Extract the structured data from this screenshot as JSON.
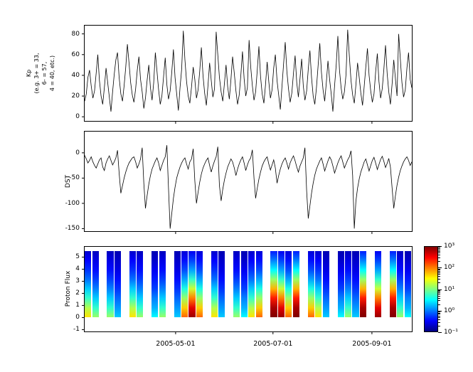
{
  "figure": {
    "background": "#ffffff",
    "line_color": "#000000",
    "x_axis": {
      "domain_days": [
        0,
        205
      ],
      "tick_days": [
        57,
        118,
        180
      ],
      "tick_labels": [
        "2005-05-01",
        "2005-07-01",
        "2005-09-01"
      ]
    }
  },
  "chart_data": [
    {
      "type": "line",
      "name": "kp-index",
      "ylabel_lines": [
        "Kp",
        "(e.g. 3+ = 33,",
        "6- = 57,",
        "4 = 40, etc.)"
      ],
      "ylim": [
        -4,
        88
      ],
      "yticks": [
        0,
        20,
        40,
        60,
        80
      ],
      "line_color": "#000000",
      "values": [
        15,
        22,
        38,
        45,
        30,
        18,
        25,
        42,
        60,
        35,
        20,
        12,
        28,
        47,
        33,
        19,
        5,
        24,
        41,
        55,
        62,
        38,
        22,
        15,
        30,
        48,
        70,
        52,
        33,
        21,
        14,
        27,
        45,
        58,
        36,
        24,
        8,
        18,
        35,
        50,
        28,
        16,
        33,
        62,
        44,
        26,
        12,
        20,
        39,
        57,
        31,
        17,
        25,
        43,
        65,
        38,
        22,
        6,
        28,
        46,
        83,
        55,
        34,
        20,
        13,
        29,
        48,
        36,
        18,
        26,
        44,
        67,
        40,
        23,
        11,
        30,
        52,
        35,
        19,
        27,
        82,
        60,
        38,
        24,
        15,
        32,
        50,
        29,
        17,
        36,
        58,
        42,
        25,
        12,
        21,
        40,
        63,
        37,
        20,
        28,
        74,
        48,
        30,
        16,
        24,
        45,
        68,
        39,
        22,
        13,
        31,
        53,
        34,
        18,
        26,
        47,
        60,
        35,
        21,
        7,
        29,
        51,
        72,
        44,
        27,
        14,
        23,
        42,
        59,
        33,
        19,
        37,
        56,
        30,
        16,
        25,
        46,
        64,
        38,
        20,
        12,
        28,
        49,
        71,
        43,
        26,
        15,
        33,
        54,
        36,
        22,
        5,
        30,
        50,
        78,
        45,
        28,
        17,
        24,
        41,
        84,
        58,
        35,
        21,
        13,
        31,
        52,
        38,
        23,
        11,
        29,
        48,
        66,
        40,
        25,
        14,
        22,
        43,
        61,
        34,
        18,
        27,
        46,
        69,
        42,
        24,
        12,
        32,
        55,
        37,
        20,
        80,
        56,
        33,
        19,
        26,
        47,
        62,
        36,
        28
      ]
    },
    {
      "type": "line",
      "name": "dst",
      "ylabel_lines": [
        "DST"
      ],
      "ylim": [
        -155,
        42
      ],
      "yticks": [
        0,
        -50,
        -100,
        -150
      ],
      "line_color": "#000000",
      "values": [
        -5,
        -12,
        -20,
        -15,
        -8,
        -18,
        -25,
        -30,
        -22,
        -14,
        -10,
        -28,
        -35,
        -20,
        -12,
        -6,
        -15,
        -24,
        -18,
        -10,
        5,
        -40,
        -80,
        -65,
        -50,
        -38,
        -28,
        -20,
        -15,
        -10,
        -8,
        -18,
        -30,
        -22,
        -12,
        10,
        -60,
        -110,
        -85,
        -62,
        -45,
        -32,
        -24,
        -16,
        -10,
        -20,
        -35,
        -25,
        -15,
        -8,
        15,
        -70,
        -150,
        -120,
        -90,
        -68,
        -50,
        -38,
        -28,
        -20,
        -14,
        -10,
        -22,
        -32,
        -18,
        -12,
        8,
        -55,
        -100,
        -78,
        -58,
        -42,
        -30,
        -22,
        -15,
        -10,
        -25,
        -38,
        -26,
        -16,
        -8,
        12,
        -65,
        -95,
        -72,
        -54,
        -40,
        -28,
        -20,
        -12,
        -18,
        -30,
        -45,
        -32,
        -22,
        -14,
        -8,
        -20,
        -35,
        -24,
        -15,
        -10,
        6,
        -50,
        -90,
        -70,
        -52,
        -38,
        -26,
        -18,
        -12,
        -8,
        -22,
        -34,
        -24,
        -14,
        -30,
        -60,
        -45,
        -32,
        -22,
        -15,
        -10,
        -20,
        -32,
        -20,
        -12,
        -6,
        -16,
        -28,
        -38,
        -26,
        -18,
        -10,
        10,
        -75,
        -130,
        -105,
        -80,
        -60,
        -44,
        -32,
        -24,
        -16,
        -10,
        -22,
        -36,
        -26,
        -16,
        -8,
        -14,
        -26,
        -40,
        -30,
        -20,
        -12,
        -6,
        -18,
        -30,
        -22,
        -14,
        -8,
        4,
        -45,
        -150,
        -95,
        -70,
        -52,
        -38,
        -28,
        -18,
        -12,
        -24,
        -36,
        -25,
        -15,
        -9,
        -20,
        -33,
        -23,
        -13,
        -7,
        -17,
        -29,
        -21,
        -11,
        -28,
        -70,
        -110,
        -85,
        -64,
        -48,
        -35,
        -26,
        -18,
        -12,
        -8,
        -15,
        -25,
        -18
      ]
    },
    {
      "type": "heatmap",
      "name": "proton-flux",
      "ylabel_lines": [
        "Proton Flux"
      ],
      "ylim": [
        -1.15,
        5.85
      ],
      "yticks": [
        -1,
        0,
        1,
        2,
        3,
        4,
        5
      ],
      "energy_range": [
        0,
        5.5
      ],
      "value_range": [
        -1,
        3
      ],
      "colormap": "jet",
      "colorbar": {
        "tick_labels": [
          "10³",
          "10²",
          "10¹",
          "10⁰",
          "10⁻¹"
        ]
      },
      "columns": [
        [
          1.6,
          1.2,
          0.7,
          0.3,
          -0.05,
          -0.3,
          -0.5,
          -0.7
        ],
        [
          1.1,
          0.7,
          0.3,
          0.0,
          -0.25,
          -0.45,
          -0.6,
          -0.75
        ],
        null,
        [
          1.1,
          0.7,
          0.3,
          0.0,
          -0.25,
          -0.45,
          -0.6,
          -0.75
        ],
        [
          0.3,
          0.1,
          -0.1,
          -0.3,
          -0.45,
          -0.6,
          -0.7,
          -0.8
        ],
        null,
        [
          1.6,
          1.2,
          0.7,
          0.3,
          -0.05,
          -0.3,
          -0.5,
          -0.7
        ],
        [
          1.1,
          0.7,
          0.3,
          0.0,
          -0.25,
          -0.45,
          -0.6,
          -0.75
        ],
        null,
        [
          0.5,
          0.2,
          0.0,
          -0.25,
          -0.4,
          -0.55,
          -0.7,
          -0.8
        ],
        [
          1.1,
          0.7,
          0.3,
          0.0,
          -0.25,
          -0.45,
          -0.6,
          -0.75
        ],
        null,
        [
          0.3,
          0.1,
          -0.1,
          -0.3,
          -0.45,
          -0.6,
          -0.7,
          -0.8
        ],
        [
          2.1,
          1.7,
          1.1,
          0.6,
          0.15,
          -0.2,
          -0.45,
          -0.65
        ],
        [
          2.9,
          2.6,
          2.0,
          1.3,
          0.7,
          0.15,
          -0.25,
          -0.55
        ],
        [
          2.1,
          1.7,
          1.1,
          0.6,
          0.15,
          -0.2,
          -0.45,
          -0.65
        ],
        null,
        [
          1.6,
          1.2,
          0.7,
          0.3,
          -0.05,
          -0.3,
          -0.5,
          -0.7
        ],
        [
          0.3,
          0.1,
          -0.1,
          -0.3,
          -0.45,
          -0.6,
          -0.7,
          -0.8
        ],
        null,
        [
          1.1,
          0.7,
          0.3,
          0.0,
          -0.25,
          -0.45,
          -0.6,
          -0.75
        ],
        [
          0.5,
          0.2,
          0.0,
          -0.25,
          -0.4,
          -0.55,
          -0.7,
          -0.8
        ],
        [
          1.6,
          1.2,
          0.7,
          0.3,
          -0.05,
          -0.3,
          -0.5,
          -0.7
        ],
        [
          2.1,
          1.7,
          1.1,
          0.6,
          0.15,
          -0.2,
          -0.45,
          -0.65
        ],
        null,
        [
          3.0,
          2.85,
          2.4,
          1.8,
          1.1,
          0.5,
          0.0,
          -0.4
        ],
        [
          2.9,
          2.6,
          2.0,
          1.3,
          0.7,
          0.15,
          -0.25,
          -0.55
        ],
        [
          2.1,
          1.7,
          1.1,
          0.6,
          0.15,
          -0.2,
          -0.45,
          -0.65
        ],
        [
          3.0,
          2.85,
          2.4,
          1.8,
          1.1,
          0.5,
          0.0,
          -0.4
        ],
        null,
        [
          2.1,
          1.7,
          1.1,
          0.6,
          0.15,
          -0.2,
          -0.45,
          -0.65
        ],
        [
          1.6,
          1.2,
          0.7,
          0.3,
          -0.05,
          -0.3,
          -0.5,
          -0.7
        ],
        [
          0.3,
          0.1,
          -0.1,
          -0.3,
          -0.45,
          -0.6,
          -0.7,
          -0.8
        ],
        null,
        [
          0.5,
          0.2,
          0.0,
          -0.25,
          -0.4,
          -0.55,
          -0.7,
          -0.8
        ],
        [
          1.1,
          0.7,
          0.3,
          0.0,
          -0.25,
          -0.45,
          -0.6,
          -0.75
        ],
        [
          0.3,
          0.1,
          -0.1,
          -0.3,
          -0.45,
          -0.6,
          -0.7,
          -0.8
        ],
        [
          3.0,
          2.85,
          2.4,
          1.8,
          1.1,
          0.5,
          0.0,
          -0.4
        ],
        null,
        [
          2.9,
          2.6,
          2.0,
          1.3,
          0.7,
          0.15,
          -0.25,
          -0.55
        ],
        null,
        [
          3.0,
          2.85,
          2.4,
          1.8,
          1.1,
          0.5,
          0.0,
          -0.4
        ],
        [
          1.1,
          0.7,
          0.3,
          0.0,
          -0.25,
          -0.45,
          -0.6,
          -0.75
        ],
        [
          0.5,
          0.2,
          0.0,
          -0.25,
          -0.4,
          -0.55,
          -0.7,
          -0.8
        ]
      ]
    }
  ]
}
